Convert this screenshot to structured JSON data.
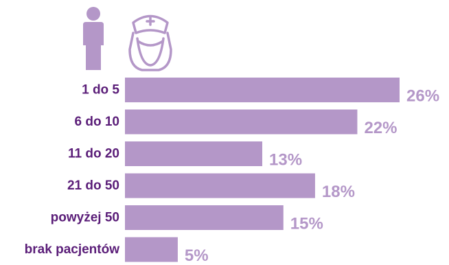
{
  "colors": {
    "bar": "#b497c8",
    "value_text": "#b497c8",
    "category_text": "#5a1d78",
    "icon_person": "#b497c8",
    "icon_nurse": "#b497c8"
  },
  "icons": {
    "left": "person-icon",
    "right": "nurse-icon"
  },
  "chart_data": {
    "type": "bar",
    "orientation": "horizontal",
    "categories": [
      "1 do 5",
      "6 do 10",
      "11 do 20",
      "21 do 50",
      "powyżej 50",
      "brak pacjentów"
    ],
    "values": [
      26,
      22,
      13,
      18,
      15,
      5
    ],
    "value_labels": [
      "26%",
      "22%",
      "13%",
      "18%",
      "15%",
      "5%"
    ],
    "unit": "%",
    "xlim": [
      0,
      26
    ],
    "grid": false,
    "legend": "none"
  }
}
